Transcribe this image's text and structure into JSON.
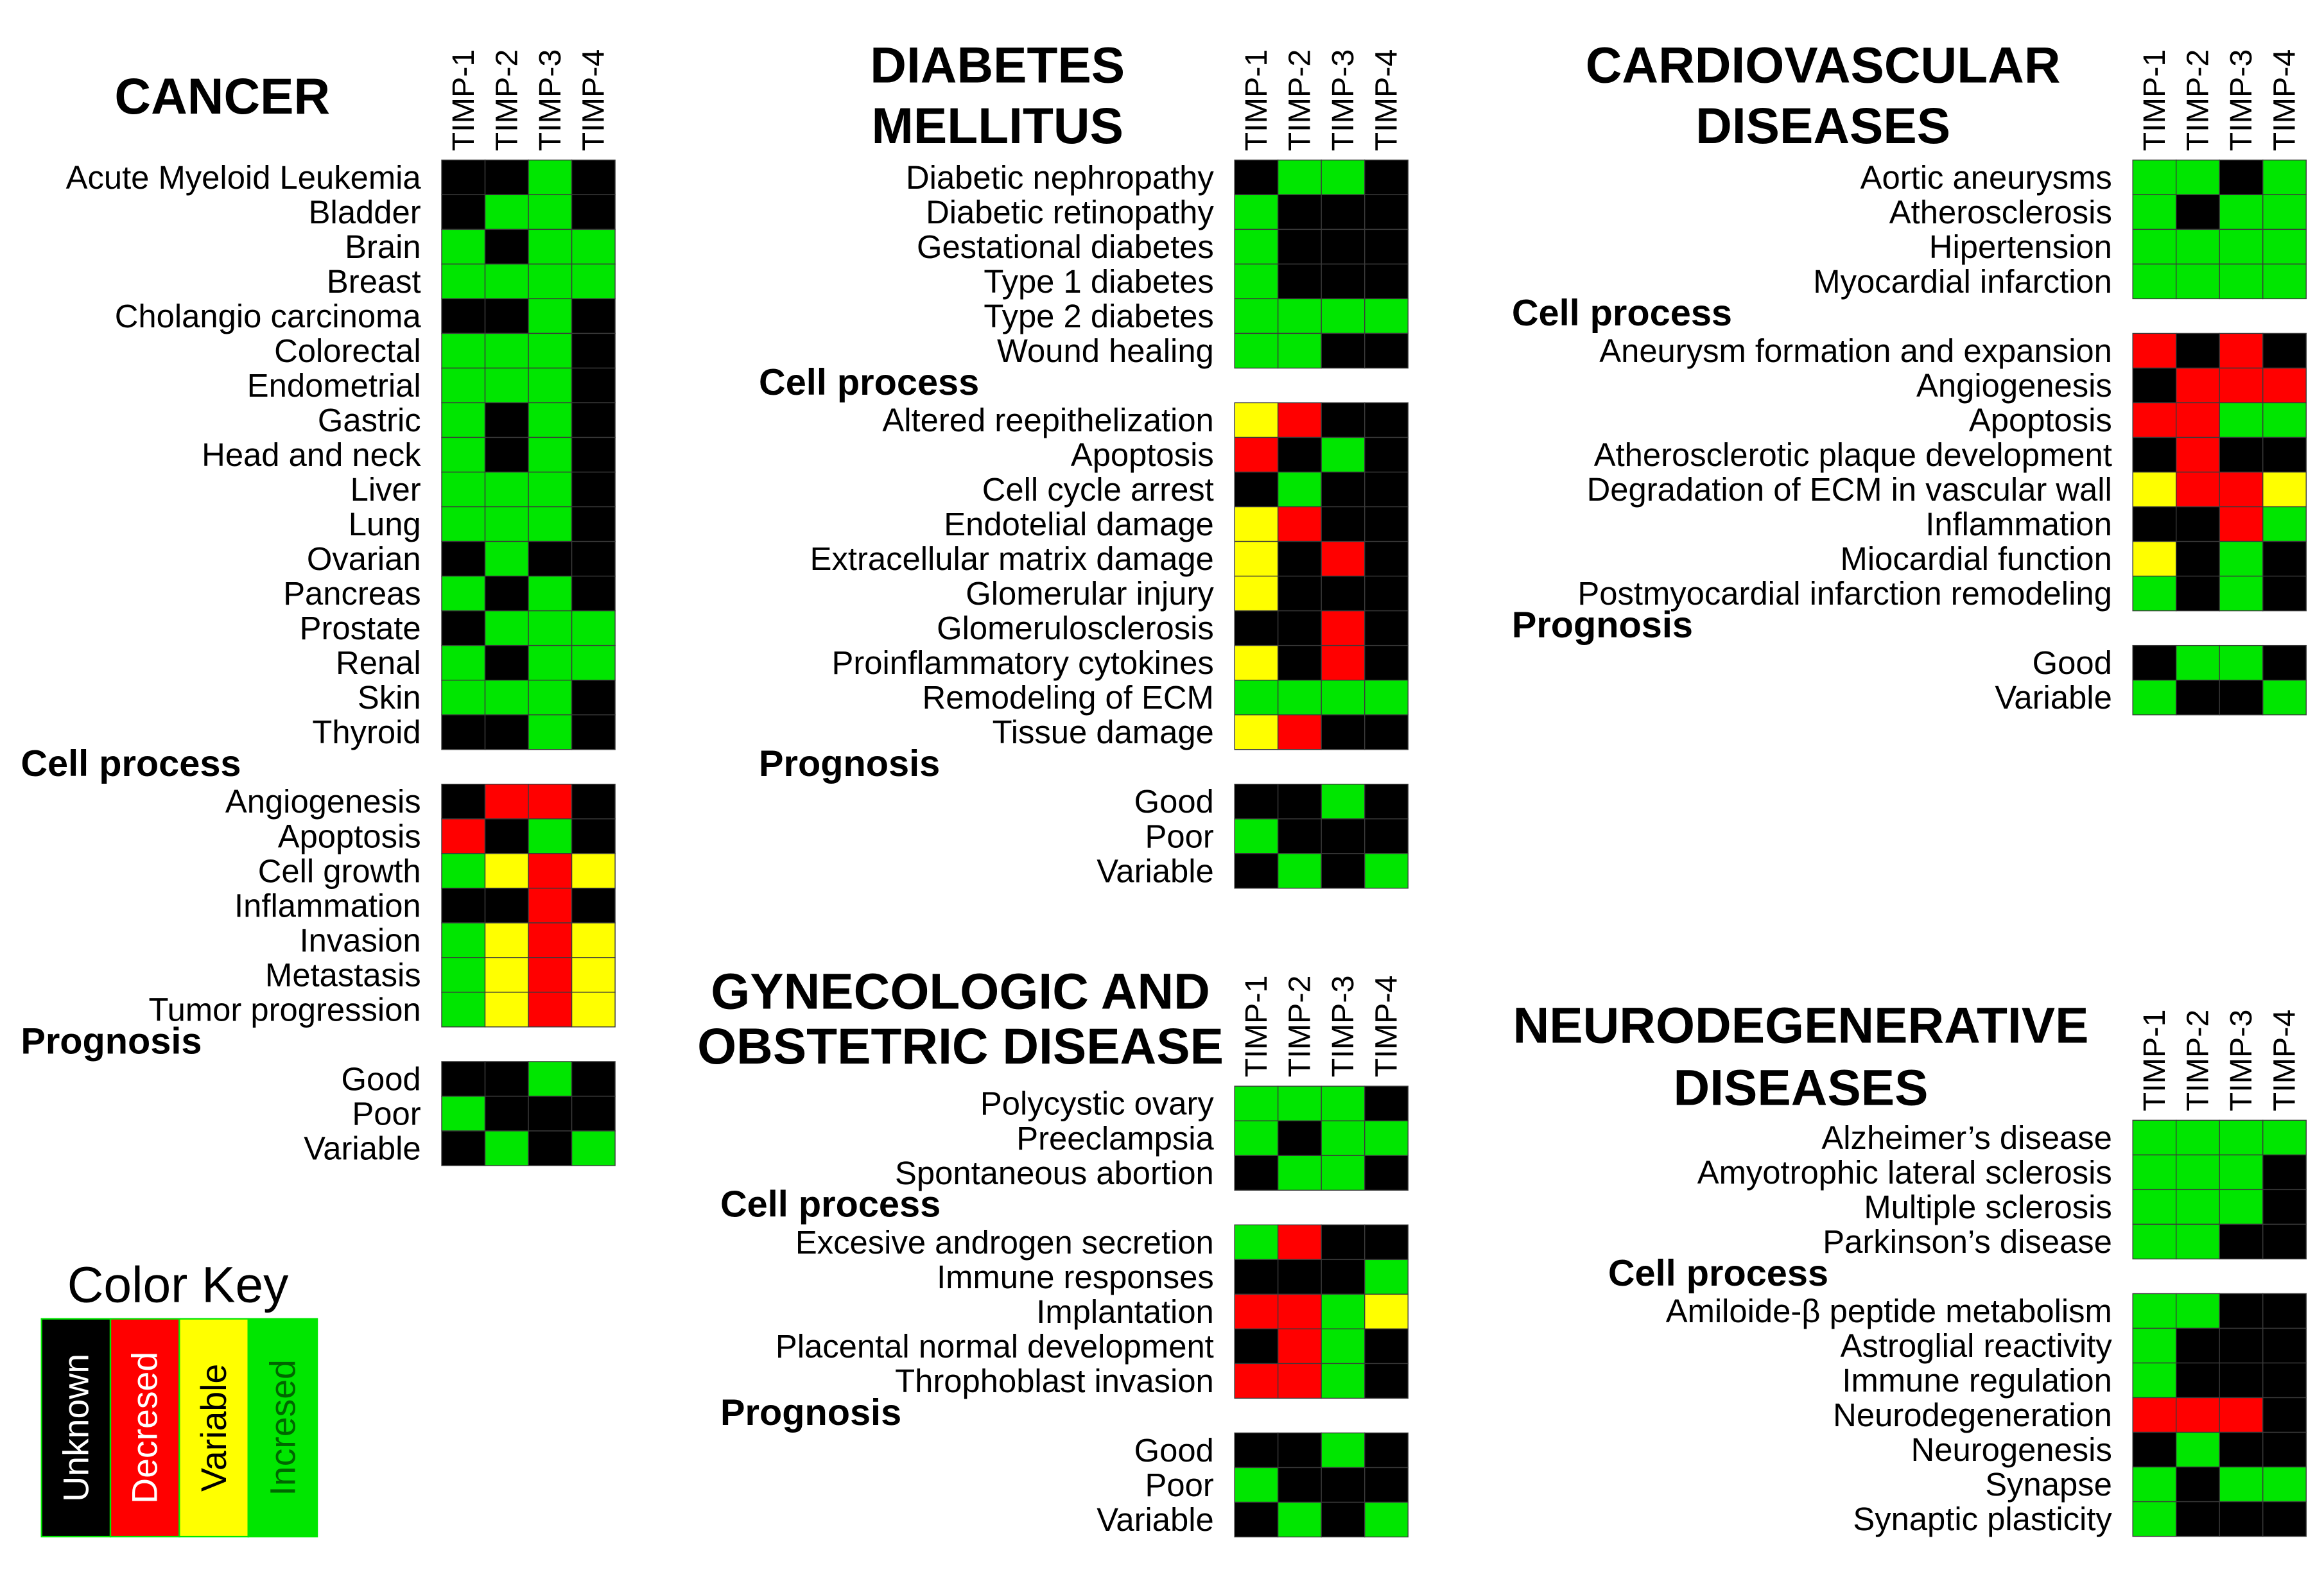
{
  "legend": {
    "title": "Color Key",
    "items": [
      {
        "label": "Unknown",
        "color": "#000000"
      },
      {
        "label": "Decresed",
        "color": "#ff0000"
      },
      {
        "label": "Variable",
        "color": "#ffff00"
      },
      {
        "label": "Incresed",
        "color": "#00e600"
      }
    ]
  },
  "panels": [
    {
      "title": [
        "CANCER"
      ],
      "columns": [
        "TIMP-1",
        "TIMP-2",
        "TIMP-3",
        "TIMP-4"
      ],
      "sections": [
        {
          "rows": [
            {
              "label": "Acute Myeloid Leukemia",
              "values": [
                0,
                0,
                3,
                0
              ]
            },
            {
              "label": "Bladder",
              "values": [
                0,
                3,
                3,
                0
              ]
            },
            {
              "label": "Brain",
              "values": [
                3,
                0,
                3,
                3
              ]
            },
            {
              "label": "Breast",
              "values": [
                3,
                3,
                3,
                3
              ]
            },
            {
              "label": "Cholangio carcinoma",
              "values": [
                0,
                0,
                3,
                0
              ]
            },
            {
              "label": "Colorectal",
              "values": [
                3,
                3,
                3,
                0
              ]
            },
            {
              "label": "Endometrial",
              "values": [
                3,
                3,
                3,
                0
              ]
            },
            {
              "label": "Gastric",
              "values": [
                3,
                0,
                3,
                0
              ]
            },
            {
              "label": "Head and neck",
              "values": [
                3,
                0,
                3,
                0
              ]
            },
            {
              "label": "Liver",
              "values": [
                3,
                3,
                3,
                0
              ]
            },
            {
              "label": "Lung",
              "values": [
                3,
                3,
                3,
                0
              ]
            },
            {
              "label": "Ovarian",
              "values": [
                0,
                3,
                0,
                0
              ]
            },
            {
              "label": "Pancreas",
              "values": [
                3,
                0,
                3,
                0
              ]
            },
            {
              "label": "Prostate",
              "values": [
                0,
                3,
                3,
                3
              ]
            },
            {
              "label": "Renal",
              "values": [
                3,
                0,
                3,
                3
              ]
            },
            {
              "label": "Skin",
              "values": [
                3,
                3,
                3,
                0
              ]
            },
            {
              "label": "Thyroid",
              "values": [
                0,
                0,
                3,
                0
              ]
            }
          ]
        },
        {
          "label": "Cell process",
          "rows": [
            {
              "label": "Angiogenesis",
              "values": [
                0,
                1,
                1,
                0
              ]
            },
            {
              "label": "Apoptosis",
              "values": [
                1,
                0,
                3,
                0
              ]
            },
            {
              "label": "Cell growth",
              "values": [
                3,
                2,
                1,
                2
              ]
            },
            {
              "label": "Inflammation",
              "values": [
                0,
                0,
                1,
                0
              ]
            },
            {
              "label": "Invasion",
              "values": [
                3,
                2,
                1,
                2
              ]
            },
            {
              "label": "Metastasis",
              "values": [
                3,
                2,
                1,
                2
              ]
            },
            {
              "label": "Tumor progression",
              "values": [
                3,
                2,
                1,
                2
              ]
            }
          ]
        },
        {
          "label": "Prognosis",
          "rows": [
            {
              "label": "Good",
              "values": [
                0,
                0,
                3,
                0
              ]
            },
            {
              "label": "Poor",
              "values": [
                3,
                0,
                0,
                0
              ]
            },
            {
              "label": "Variable",
              "values": [
                0,
                3,
                0,
                3
              ]
            }
          ]
        }
      ]
    },
    {
      "title": [
        "DIABETES",
        "MELLITUS"
      ],
      "columns": [
        "TIMP-1",
        "TIMP-2",
        "TIMP-3",
        "TIMP-4"
      ],
      "sections": [
        {
          "rows": [
            {
              "label": "Diabetic nephropathy",
              "values": [
                0,
                3,
                3,
                0
              ]
            },
            {
              "label": "Diabetic retinopathy",
              "values": [
                3,
                0,
                0,
                0
              ]
            },
            {
              "label": "Gestational diabetes",
              "values": [
                3,
                0,
                0,
                0
              ]
            },
            {
              "label": "Type 1 diabetes",
              "values": [
                3,
                0,
                0,
                0
              ]
            },
            {
              "label": "Type 2 diabetes",
              "values": [
                3,
                3,
                3,
                3
              ]
            },
            {
              "label": "Wound healing",
              "values": [
                3,
                3,
                0,
                0
              ]
            }
          ]
        },
        {
          "label": "Cell process",
          "rows": [
            {
              "label": "Altered reepithelization",
              "values": [
                2,
                1,
                0,
                0
              ]
            },
            {
              "label": "Apoptosis",
              "values": [
                1,
                0,
                3,
                0
              ]
            },
            {
              "label": "Cell cycle arrest",
              "values": [
                0,
                3,
                0,
                0
              ]
            },
            {
              "label": "Endotelial damage",
              "values": [
                2,
                1,
                0,
                0
              ]
            },
            {
              "label": "Extracellular matrix damage",
              "values": [
                2,
                0,
                1,
                0
              ]
            },
            {
              "label": "Glomerular injury",
              "values": [
                2,
                0,
                0,
                0
              ]
            },
            {
              "label": "Glomerulosclerosis",
              "values": [
                0,
                0,
                1,
                0
              ]
            },
            {
              "label": "Proinflammatory cytokines",
              "values": [
                2,
                0,
                1,
                0
              ]
            },
            {
              "label": "Remodeling of ECM",
              "values": [
                3,
                3,
                3,
                3
              ]
            },
            {
              "label": "Tissue damage",
              "values": [
                2,
                1,
                0,
                0
              ]
            }
          ]
        },
        {
          "label": "Prognosis",
          "rows": [
            {
              "label": "Good",
              "values": [
                0,
                0,
                3,
                0
              ]
            },
            {
              "label": "Poor",
              "values": [
                3,
                0,
                0,
                0
              ]
            },
            {
              "label": "Variable",
              "values": [
                0,
                3,
                0,
                3
              ]
            }
          ]
        }
      ]
    },
    {
      "title": [
        "CARDIOVASCULAR",
        "DISEASES"
      ],
      "columns": [
        "TIMP-1",
        "TIMP-2",
        "TIMP-3",
        "TIMP-4"
      ],
      "sections": [
        {
          "rows": [
            {
              "label": "Aortic aneurysms",
              "values": [
                3,
                3,
                0,
                3
              ]
            },
            {
              "label": "Atherosclerosis",
              "values": [
                3,
                0,
                3,
                3
              ]
            },
            {
              "label": "Hipertension",
              "values": [
                3,
                3,
                3,
                3
              ]
            },
            {
              "label": "Myocardial infarction",
              "values": [
                3,
                3,
                3,
                3
              ]
            }
          ]
        },
        {
          "label": "Cell process",
          "rows": [
            {
              "label": "Aneurysm formation and expansion",
              "values": [
                1,
                0,
                1,
                0
              ]
            },
            {
              "label": "Angiogenesis",
              "values": [
                0,
                1,
                1,
                1
              ]
            },
            {
              "label": "Apoptosis",
              "values": [
                1,
                1,
                3,
                3
              ]
            },
            {
              "label": "Atherosclerotic plaque development",
              "values": [
                0,
                1,
                0,
                0
              ]
            },
            {
              "label": "Degradation of ECM in vascular wall",
              "values": [
                2,
                1,
                1,
                2
              ]
            },
            {
              "label": "Inflammation",
              "values": [
                0,
                0,
                1,
                3
              ]
            },
            {
              "label": "Miocardial function",
              "values": [
                2,
                0,
                3,
                0
              ]
            },
            {
              "label": "Postmyocardial infarction remodeling",
              "values": [
                3,
                0,
                3,
                0
              ]
            }
          ]
        },
        {
          "label": "Prognosis",
          "rows": [
            {
              "label": "Good",
              "values": [
                0,
                3,
                3,
                0
              ]
            },
            {
              "label": "Variable",
              "values": [
                3,
                0,
                0,
                3
              ]
            }
          ]
        }
      ]
    },
    {
      "title": [
        "GYNECOLOGIC AND",
        "OBSTETRIC DISEASE"
      ],
      "columns": [
        "TIMP-1",
        "TIMP-2",
        "TIMP-3",
        "TIMP-4"
      ],
      "sections": [
        {
          "rows": [
            {
              "label": "Polycystic ovary",
              "values": [
                3,
                3,
                3,
                0
              ]
            },
            {
              "label": "Preeclampsia",
              "values": [
                3,
                0,
                3,
                3
              ]
            },
            {
              "label": "Spontaneous abortion",
              "values": [
                0,
                3,
                3,
                0
              ]
            }
          ]
        },
        {
          "label": "Cell process",
          "rows": [
            {
              "label": "Excesive androgen secretion",
              "values": [
                3,
                1,
                0,
                0
              ]
            },
            {
              "label": "Immune responses",
              "values": [
                0,
                0,
                0,
                3
              ]
            },
            {
              "label": "Implantation",
              "values": [
                1,
                1,
                3,
                2
              ]
            },
            {
              "label": "Placental normal development",
              "values": [
                0,
                1,
                3,
                0
              ]
            },
            {
              "label": "Throphoblast invasion",
              "values": [
                1,
                1,
                3,
                0
              ]
            }
          ]
        },
        {
          "label": "Prognosis",
          "rows": [
            {
              "label": "Good",
              "values": [
                0,
                0,
                3,
                0
              ]
            },
            {
              "label": "Poor",
              "values": [
                3,
                0,
                0,
                0
              ]
            },
            {
              "label": "Variable",
              "values": [
                0,
                3,
                0,
                3
              ]
            }
          ]
        }
      ]
    },
    {
      "title": [
        "NEURODEGENERATIVE",
        "DISEASES"
      ],
      "columns": [
        "TIMP-1",
        "TIMP-2",
        "TIMP-3",
        "TIMP-4"
      ],
      "sections": [
        {
          "rows": [
            {
              "label": "Alzheimer’s disease",
              "values": [
                3,
                3,
                3,
                3
              ]
            },
            {
              "label": "Amyotrophic lateral sclerosis",
              "values": [
                3,
                3,
                3,
                0
              ]
            },
            {
              "label": "Multiple sclerosis",
              "values": [
                3,
                3,
                3,
                0
              ]
            },
            {
              "label": "Parkinson’s disease",
              "values": [
                3,
                3,
                0,
                0
              ]
            }
          ]
        },
        {
          "label": "Cell process",
          "rows": [
            {
              "label": "Amiloide-β peptide metabolism",
              "values": [
                3,
                3,
                0,
                0
              ]
            },
            {
              "label": "Astroglial reactivity",
              "values": [
                3,
                0,
                0,
                0
              ]
            },
            {
              "label": "Immune regulation",
              "values": [
                3,
                0,
                0,
                0
              ]
            },
            {
              "label": "Neurodegeneration",
              "values": [
                1,
                1,
                1,
                0
              ]
            },
            {
              "label": "Neurogenesis",
              "values": [
                0,
                3,
                0,
                0
              ]
            },
            {
              "label": "Synapse",
              "values": [
                3,
                0,
                3,
                3
              ]
            },
            {
              "label": "Synaptic plasticity",
              "values": [
                3,
                0,
                0,
                0
              ]
            }
          ]
        }
      ]
    }
  ]
}
